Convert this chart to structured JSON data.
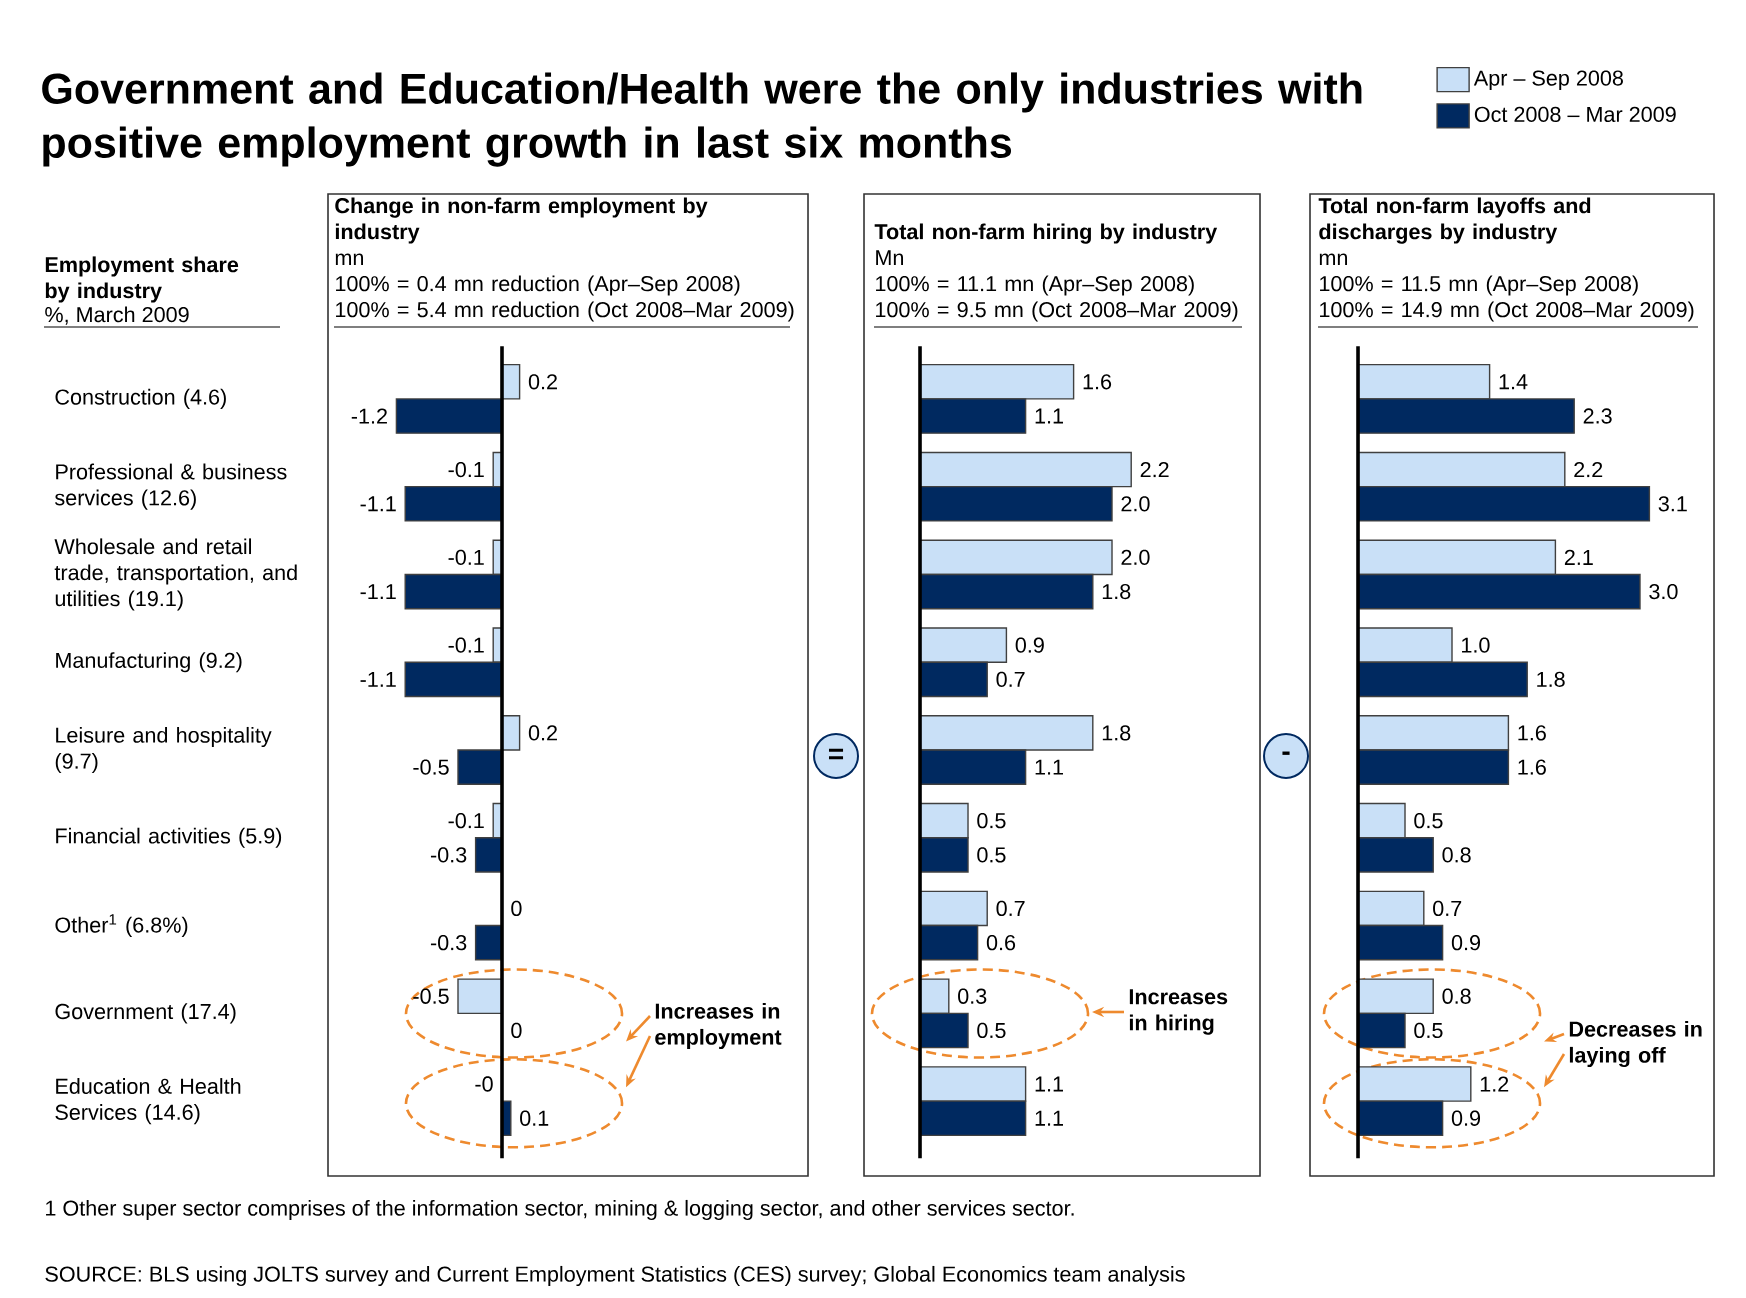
{
  "chart_data": [
    {
      "type": "bar",
      "orientation": "horizontal",
      "title": "Change in non-farm employment by industry",
      "subtitle": "mn",
      "ylabel": "Employment share by industry",
      "categories": [
        "Construction (4.6)",
        "Professional & business services (12.6)",
        "Wholesale and retail trade, transportation, and utilities (19.1)",
        "Manufacturing (9.2)",
        "Leisure and hospitality (9.7)",
        "Financial activities (5.9)",
        "Other$^{1}$ (6.8%)",
        "Government (17.4)",
        "Education & Health Services (14.6)"
      ],
      "series": [
        {
          "name": "Apr – Sep 2008",
          "color": "#c9e0f7",
          "values": [
            0.2,
            -0.1,
            -0.1,
            -0.1,
            0.2,
            -0.1,
            0,
            -0.5,
            -0.0
          ],
          "value_labels": [
            "0.2",
            "-0.1",
            "-0.1",
            "-0.1",
            "0.2",
            "-0.1",
            "0",
            "-0.5",
            "-0"
          ]
        },
        {
          "name": "Oct 2008 – Mar 2009",
          "color": "#002960",
          "values": [
            -1.2,
            -1.1,
            -1.1,
            -1.1,
            -0.5,
            -0.3,
            -0.3,
            0,
            0.1
          ],
          "value_labels": [
            "-1.2",
            "-1.1",
            "-1.1",
            "-1.1",
            "-0.5",
            "-0.3",
            "-0.3",
            "0",
            "0.1"
          ]
        }
      ],
      "tick_labels": "y",
      "legend": "top right",
      "annotations": [
        "100% = 0.4 mn reduction (Apr–Sep 2008)",
        "100% = 5.4 mn reduction (Oct 2008–Mar 2009)",
        "Increases in employment",
        "%, March 2009",
        "Government and Education/Health were the only industries with positive employment growth in last six months",
        "1 Other super sector comprises of the information sector, mining & logging sector, and other services sector.",
        "SOURCE: BLS using JOLTS survey and Current Employment Statistics (CES) survey; Global Economics team analysis"
      ]
    },
    {
      "type": "bar",
      "orientation": "horizontal",
      "title": "Total non-farm hiring by industry",
      "subtitle": "Mn",
      "series": [
        {
          "color": "#c9e0f7",
          "values": [
            1.6,
            2.2,
            2.0,
            0.9,
            1.8,
            0.5,
            0.7,
            0.3,
            1.1
          ],
          "value_labels": [
            "1.6",
            "2.2",
            "2.0",
            "0.9",
            "1.8",
            "0.5",
            "0.7",
            "0.3",
            "1.1"
          ]
        },
        {
          "color": "#002960",
          "values": [
            1.1,
            2.0,
            1.8,
            0.7,
            1.1,
            0.5,
            0.6,
            0.5,
            1.1
          ],
          "value_labels": [
            "1.1",
            "2.0",
            "1.8",
            "0.7",
            "1.1",
            "0.5",
            "0.6",
            "0.5",
            "1.1"
          ]
        }
      ],
      "tick_labels": false,
      "annotations": [
        "=",
        "100% = 11.1 mn (Apr–Sep 2008)",
        "100% = 9.5 mn (Oct 2008–Mar 2009)",
        "Increases in hiring"
      ]
    },
    {
      "type": "bar",
      "orientation": "horizontal",
      "title": "Total non-farm layoffs and discharges by industry",
      "subtitle": "mn",
      "series": [
        {
          "color": "#c9e0f7",
          "values": [
            1.4,
            2.2,
            2.1,
            1.0,
            1.6,
            0.5,
            0.7,
            0.8,
            1.2
          ],
          "value_labels": [
            "1.4",
            "2.2",
            "2.1",
            "1.0",
            "1.6",
            "0.5",
            "0.7",
            "0.8",
            "1.2"
          ]
        },
        {
          "color": "#002960",
          "values": [
            2.3,
            3.1,
            3.0,
            1.8,
            1.6,
            0.8,
            0.9,
            0.5,
            0.9
          ],
          "value_labels": [
            "2.3",
            "3.1",
            "3.0",
            "1.8",
            "1.6",
            "0.8",
            "0.9",
            "0.5",
            "0.9"
          ]
        }
      ],
      "tick_labels": false,
      "annotations": [
        "-",
        "100% = 11.5 mn (Apr–Sep 2008)",
        "100% = 14.9 mn (Oct 2008–Mar 2009)",
        "Decreases in laying off"
      ]
    }
  ]
}
